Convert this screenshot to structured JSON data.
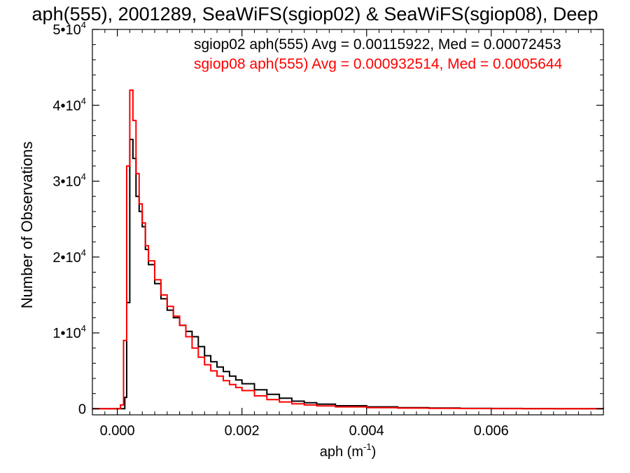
{
  "chart_data": {
    "type": "line",
    "title": "aph(555), 2001289, SeaWiFS(sgiop02) & SeaWiFS(sgiop08), Deep",
    "xlabel": "aph (m",
    "xlabel_sup": "-1",
    "xlabel_end": ")",
    "ylabel": "Number of Observations",
    "xlim": [
      -0.0004,
      0.0078
    ],
    "ylim": [
      -800,
      50000
    ],
    "x_ticks": [
      {
        "value": 0.0,
        "label": "0.000"
      },
      {
        "value": 0.002,
        "label": "0.002"
      },
      {
        "value": 0.004,
        "label": "0.004"
      },
      {
        "value": 0.006,
        "label": "0.006"
      }
    ],
    "y_ticks": [
      {
        "value": 0,
        "label": "0",
        "sup": ""
      },
      {
        "value": 10000,
        "label": "1•10",
        "sup": "4"
      },
      {
        "value": 20000,
        "label": "2•10",
        "sup": "4"
      },
      {
        "value": 30000,
        "label": "3•10",
        "sup": "4"
      },
      {
        "value": 40000,
        "label": "4•10",
        "sup": "4"
      },
      {
        "value": 50000,
        "label": "5•10",
        "sup": "4"
      }
    ],
    "grid": false,
    "step": true,
    "legend_position": "top-right",
    "legend": [
      {
        "text": "sgiop02 aph(555) Avg = 0.00115922, Med = 0.00072453",
        "color": "#000000"
      },
      {
        "text": "sgiop08 aph(555) Avg = 0.000932514, Med = 0.0005644",
        "color": "#ff0000"
      }
    ],
    "series": [
      {
        "color": "#000000",
        "x": [
          -0.0004,
          0.0001,
          0.00012,
          0.00015,
          0.0002,
          0.00025,
          0.0003,
          0.00035,
          0.0004,
          0.00045,
          0.0005,
          0.0006,
          0.0007,
          0.0008,
          0.0009,
          0.001,
          0.0011,
          0.0012,
          0.0013,
          0.0014,
          0.0015,
          0.0016,
          0.0017,
          0.0018,
          0.0019,
          0.002,
          0.0022,
          0.0024,
          0.0026,
          0.0028,
          0.003,
          0.0032,
          0.0035,
          0.004,
          0.0045,
          0.005,
          0.0055,
          0.006,
          0.0065,
          0.007,
          0.0078
        ],
        "values": [
          0,
          0,
          1500,
          14000,
          35500,
          33000,
          28000,
          26000,
          24000,
          21000,
          19000,
          16500,
          14500,
          13000,
          12000,
          11000,
          10200,
          9500,
          8200,
          7000,
          6200,
          5500,
          4900,
          4300,
          3800,
          3300,
          2500,
          1900,
          1400,
          1000,
          800,
          600,
          400,
          250,
          150,
          100,
          60,
          40,
          20,
          10,
          0
        ]
      },
      {
        "color": "#ff0000",
        "x": [
          -0.0004,
          5e-05,
          0.0001,
          0.00015,
          0.0002,
          0.00025,
          0.0003,
          0.00035,
          0.0004,
          0.00045,
          0.0005,
          0.0006,
          0.0007,
          0.0008,
          0.0009,
          0.001,
          0.0011,
          0.0012,
          0.0013,
          0.0014,
          0.0015,
          0.0016,
          0.0017,
          0.0018,
          0.0019,
          0.002,
          0.0022,
          0.0024,
          0.0026,
          0.0028,
          0.003,
          0.0032,
          0.0035,
          0.004,
          0.0045,
          0.005,
          0.0055,
          0.006,
          0.0065,
          0.007,
          0.0078
        ],
        "values": [
          0,
          500,
          9000,
          32000,
          42000,
          38000,
          31000,
          27000,
          24500,
          21500,
          19500,
          17000,
          15000,
          13500,
          12200,
          11000,
          9500,
          8000,
          6800,
          5800,
          5000,
          4300,
          3700,
          3200,
          2800,
          2400,
          1700,
          1200,
          900,
          650,
          500,
          380,
          250,
          150,
          90,
          60,
          35,
          20,
          10,
          5,
          0
        ]
      }
    ]
  }
}
